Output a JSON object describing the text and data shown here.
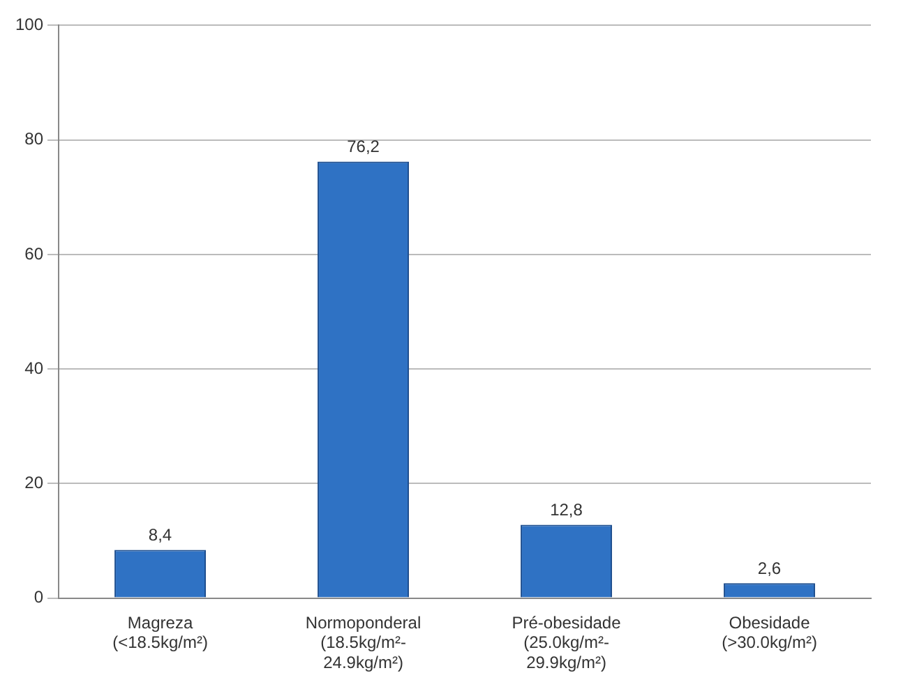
{
  "chart_data": {
    "type": "bar",
    "categories": [
      "Magreza (<18.5kg/m²)",
      "Normoponderal (18.5kg/m²-24.9kg/m²)",
      "Pré-obesidade (25.0kg/m²-29.9kg/m²)",
      "Obesidade (>30.0kg/m²)"
    ],
    "values": [
      8.4,
      76.2,
      12.8,
      2.6
    ],
    "value_labels": [
      "8,4",
      "76,2",
      "12,8",
      "2,6"
    ],
    "color": "#2f72c4",
    "ylim": [
      0,
      100
    ],
    "yticks": [
      0,
      20,
      40,
      60,
      80,
      100
    ],
    "grid": "y",
    "legend": false
  }
}
